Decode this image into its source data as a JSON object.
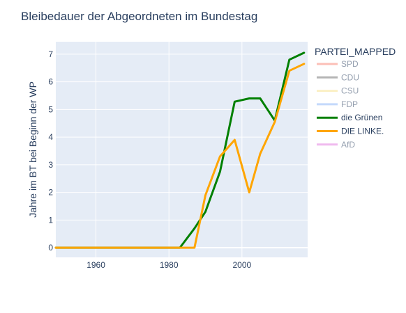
{
  "chart_data": {
    "type": "line",
    "title": "Bleibedauer der Abgeordneten im Bundestag",
    "xlabel": "",
    "ylabel": "Jahre im BT bei Beginn der WP",
    "xlim": [
      1949,
      2018
    ],
    "ylim": [
      -0.35,
      7.45
    ],
    "x_ticks": [
      1960,
      1980,
      2000
    ],
    "y_ticks": [
      0,
      1,
      2,
      3,
      4,
      5,
      6,
      7
    ],
    "grid": true,
    "legend": {
      "title": "PARTEI_MAPPED",
      "placement": "right"
    },
    "series": [
      {
        "name": "SPD",
        "color": "#fa8072",
        "visible": false,
        "x": [],
        "y": []
      },
      {
        "name": "CDU",
        "color": "#6e6e6e",
        "visible": false,
        "x": [],
        "y": []
      },
      {
        "name": "CSU",
        "color": "#f8e38a",
        "visible": false,
        "x": [],
        "y": []
      },
      {
        "name": "FDP",
        "color": "#8ab4f8",
        "visible": false,
        "x": [],
        "y": []
      },
      {
        "name": "die Grünen",
        "color": "#008000",
        "visible": true,
        "x": [
          1949,
          1953,
          1957,
          1961,
          1965,
          1969,
          1972,
          1976,
          1980,
          1983,
          1987,
          1990,
          1994,
          1998,
          2002,
          2005,
          2009,
          2013,
          2017
        ],
        "y": [
          0,
          0,
          0,
          0,
          0,
          0,
          0,
          0,
          0,
          0,
          0.7,
          1.3,
          2.75,
          5.28,
          5.4,
          5.4,
          4.6,
          6.8,
          7.05
        ]
      },
      {
        "name": "DIE LINKE.",
        "color": "#ffa500",
        "visible": true,
        "x": [
          1949,
          1953,
          1957,
          1961,
          1965,
          1969,
          1972,
          1976,
          1980,
          1983,
          1987,
          1990,
          1994,
          1998,
          2002,
          2005,
          2009,
          2013,
          2017
        ],
        "y": [
          0,
          0,
          0,
          0,
          0,
          0,
          0,
          0,
          0,
          0,
          0,
          1.9,
          3.3,
          3.9,
          2.0,
          3.4,
          4.55,
          6.4,
          6.65
        ]
      },
      {
        "name": "AfD",
        "color": "#e377e0",
        "visible": false,
        "x": [],
        "y": []
      }
    ]
  }
}
